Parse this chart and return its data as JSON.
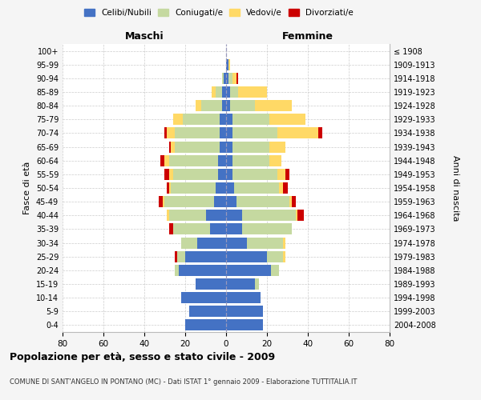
{
  "age_groups": [
    "0-4",
    "5-9",
    "10-14",
    "15-19",
    "20-24",
    "25-29",
    "30-34",
    "35-39",
    "40-44",
    "45-49",
    "50-54",
    "55-59",
    "60-64",
    "65-69",
    "70-74",
    "75-79",
    "80-84",
    "85-89",
    "90-94",
    "95-99",
    "100+"
  ],
  "birth_years": [
    "2004-2008",
    "1999-2003",
    "1994-1998",
    "1989-1993",
    "1984-1988",
    "1979-1983",
    "1974-1978",
    "1969-1973",
    "1964-1968",
    "1959-1963",
    "1954-1958",
    "1949-1953",
    "1944-1948",
    "1939-1943",
    "1934-1938",
    "1929-1933",
    "1924-1928",
    "1919-1923",
    "1914-1918",
    "1909-1913",
    "≤ 1908"
  ],
  "colors": {
    "celibi": "#4472C4",
    "coniugati": "#c5d9a0",
    "vedovi": "#ffd966",
    "divorziati": "#cc0000"
  },
  "maschi": {
    "celibi": [
      20,
      18,
      22,
      15,
      23,
      20,
      14,
      8,
      10,
      6,
      5,
      4,
      4,
      3,
      3,
      3,
      2,
      2,
      1,
      0,
      0
    ],
    "coniugati": [
      0,
      0,
      0,
      0,
      2,
      4,
      8,
      18,
      18,
      24,
      22,
      22,
      24,
      22,
      22,
      18,
      10,
      3,
      1,
      0,
      0
    ],
    "vedovi": [
      0,
      0,
      0,
      0,
      0,
      0,
      0,
      0,
      1,
      1,
      1,
      2,
      2,
      2,
      4,
      5,
      3,
      2,
      0,
      0,
      0
    ],
    "divorziati": [
      0,
      0,
      0,
      0,
      0,
      1,
      0,
      2,
      0,
      2,
      1,
      2,
      2,
      1,
      1,
      0,
      0,
      0,
      0,
      0,
      0
    ]
  },
  "femmine": {
    "celibi": [
      18,
      18,
      17,
      14,
      22,
      20,
      10,
      8,
      8,
      5,
      4,
      3,
      3,
      3,
      3,
      3,
      2,
      2,
      1,
      1,
      0
    ],
    "coniugati": [
      0,
      0,
      0,
      2,
      4,
      8,
      18,
      24,
      26,
      26,
      22,
      22,
      18,
      18,
      22,
      18,
      12,
      4,
      2,
      0,
      0
    ],
    "vedovi": [
      0,
      0,
      0,
      0,
      0,
      1,
      1,
      0,
      1,
      1,
      2,
      4,
      6,
      8,
      20,
      18,
      18,
      14,
      2,
      1,
      0
    ],
    "divorziati": [
      0,
      0,
      0,
      0,
      0,
      0,
      0,
      0,
      3,
      2,
      2,
      2,
      0,
      0,
      2,
      0,
      0,
      0,
      1,
      0,
      0
    ]
  },
  "xlim": 80,
  "title": "Popolazione per età, sesso e stato civile - 2009",
  "subtitle": "COMUNE DI SANT'ANGELO IN PONTANO (MC) - Dati ISTAT 1° gennaio 2009 - Elaborazione TUTTITALIA.IT",
  "ylabel_left": "Fasce di età",
  "ylabel_right": "Anni di nascita",
  "xlabel_maschi": "Maschi",
  "xlabel_femmine": "Femmine",
  "legend_labels": [
    "Celibi/Nubili",
    "Coniugati/e",
    "Vedovi/e",
    "Divorziati/e"
  ],
  "bg_color": "#f5f5f5",
  "plot_bg": "#ffffff"
}
